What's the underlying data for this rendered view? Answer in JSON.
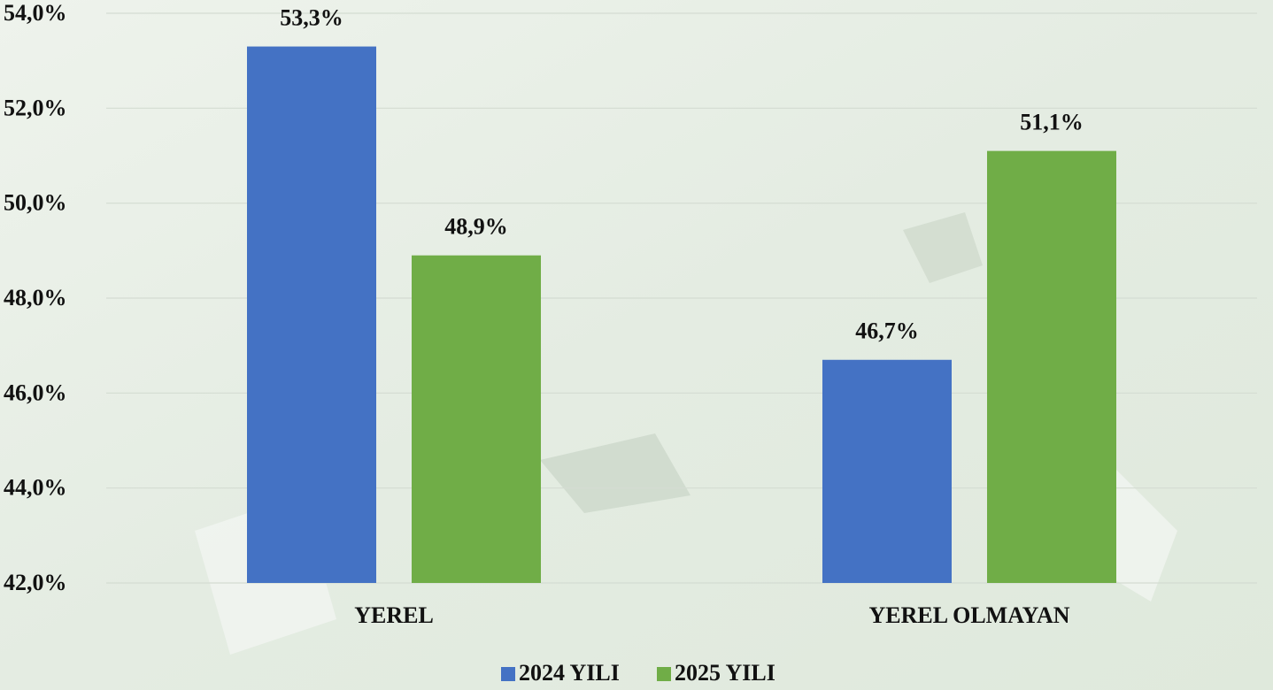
{
  "chart_data": {
    "type": "bar",
    "categories": [
      "YEREL",
      "YEREL OLMAYAN"
    ],
    "series": [
      {
        "name": "2024 YILI",
        "color": "#4472c4",
        "values": [
          53.3,
          46.7
        ],
        "value_labels": [
          "53,3%",
          "46,7%"
        ]
      },
      {
        "name": "2025 YILI",
        "color": "#70ad47",
        "values": [
          48.9,
          51.1
        ],
        "value_labels": [
          "48,9%",
          "51,1%"
        ]
      }
    ],
    "ylim": [
      42,
      54
    ],
    "yticks": [
      {
        "value": 42,
        "label": "42,0%"
      },
      {
        "value": 44,
        "label": "44,0%"
      },
      {
        "value": 46,
        "label": "46,0%"
      },
      {
        "value": 48,
        "label": "48,0%"
      },
      {
        "value": 50,
        "label": "50,0%"
      },
      {
        "value": 52,
        "label": "52,0%"
      },
      {
        "value": 54,
        "label": "54,0%"
      }
    ],
    "grid": true,
    "legend": "bottom"
  }
}
